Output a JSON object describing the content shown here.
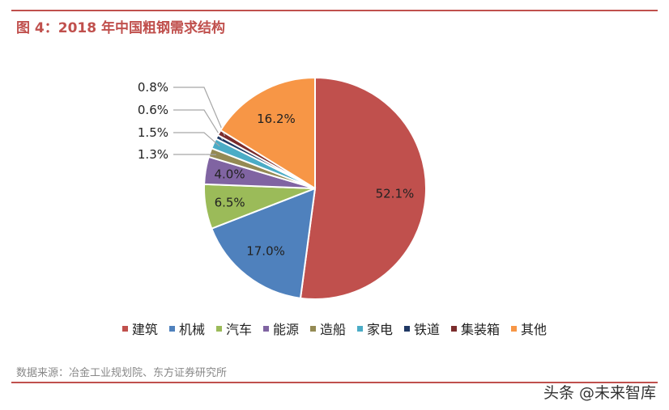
{
  "figure": {
    "title": "图 4：2018 年中国粗钢需求结构",
    "source": "数据来源：冶金工业规划院、东方证券研究所"
  },
  "watermark": "头条 @未来智库",
  "chart_data": {
    "type": "pie",
    "title": "",
    "legend_position": "bottom",
    "slices": [
      {
        "label": "建筑",
        "value": 52.1,
        "display": "52.1%",
        "color": "#c0504d"
      },
      {
        "label": "机械",
        "value": 17.0,
        "display": "17.0%",
        "color": "#4f81bd"
      },
      {
        "label": "汽车",
        "value": 6.5,
        "display": "6.5%",
        "color": "#9bbb59"
      },
      {
        "label": "能源",
        "value": 4.0,
        "display": "4.0%",
        "color": "#8064a2"
      },
      {
        "label": "造船",
        "value": 1.3,
        "display": "1.3%",
        "color": "#948a54"
      },
      {
        "label": "家电",
        "value": 1.5,
        "display": "1.5%",
        "color": "#4bacc6"
      },
      {
        "label": "铁道",
        "value": 0.6,
        "display": "0.6%",
        "color": "#1f3864"
      },
      {
        "label": "集装箱",
        "value": 0.8,
        "display": "0.8%",
        "color": "#7b2c2c"
      },
      {
        "label": "其他",
        "value": 16.2,
        "display": "16.2%",
        "color": "#f79646"
      }
    ]
  }
}
